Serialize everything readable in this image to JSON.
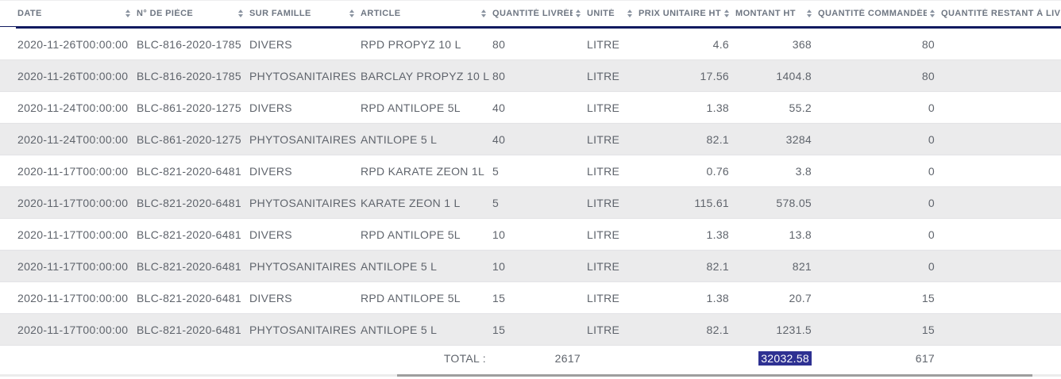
{
  "table": {
    "columns": [
      {
        "key": "date",
        "label": "DATE",
        "sortable": true,
        "align": "left"
      },
      {
        "key": "piece",
        "label": "N° DE PIÈCE",
        "sortable": true,
        "align": "left"
      },
      {
        "key": "famille",
        "label": "SUR FAMILLE",
        "sortable": true,
        "align": "left"
      },
      {
        "key": "article",
        "label": "ARTICLE",
        "sortable": true,
        "align": "left"
      },
      {
        "key": "quantite_livree",
        "label": "QUANTITÉ LIVRÉE",
        "sortable": true,
        "align": "left"
      },
      {
        "key": "unite",
        "label": "UNITÉ",
        "sortable": true,
        "align": "left"
      },
      {
        "key": "prix_unitaire_ht",
        "label": "PRIX UNITAIRE HT",
        "sortable": true,
        "align": "right"
      },
      {
        "key": "montant_ht",
        "label": "MONTANT HT",
        "sortable": true,
        "align": "right"
      },
      {
        "key": "quantite_commandee",
        "label": "QUANTITÉ COMMANDÉE",
        "sortable": true,
        "align": "right"
      },
      {
        "key": "quantite_restant",
        "label": "QUANTITÉ RESTANT À LIVRER",
        "sortable": false,
        "align": "left"
      }
    ],
    "rows": [
      {
        "date": "2020-11-26T00:00:00",
        "piece": "BLC-816-2020-1785",
        "famille": "DIVERS",
        "article": "RPD PROPYZ 10 L",
        "quantite_livree": "80",
        "unite": "LITRE",
        "prix_unitaire_ht": "4.6",
        "montant_ht": "368",
        "quantite_commandee": "80",
        "quantite_restant": ""
      },
      {
        "date": "2020-11-26T00:00:00",
        "piece": "BLC-816-2020-1785",
        "famille": "PHYTOSANITAIRES",
        "article": "BARCLAY PROPYZ 10 L",
        "quantite_livree": "80",
        "unite": "LITRE",
        "prix_unitaire_ht": "17.56",
        "montant_ht": "1404.8",
        "quantite_commandee": "80",
        "quantite_restant": ""
      },
      {
        "date": "2020-11-24T00:00:00",
        "piece": "BLC-861-2020-1275",
        "famille": "DIVERS",
        "article": "RPD ANTILOPE 5L",
        "quantite_livree": "40",
        "unite": "LITRE",
        "prix_unitaire_ht": "1.38",
        "montant_ht": "55.2",
        "quantite_commandee": "0",
        "quantite_restant": ""
      },
      {
        "date": "2020-11-24T00:00:00",
        "piece": "BLC-861-2020-1275",
        "famille": "PHYTOSANITAIRES",
        "article": "ANTILOPE 5 L",
        "quantite_livree": "40",
        "unite": "LITRE",
        "prix_unitaire_ht": "82.1",
        "montant_ht": "3284",
        "quantite_commandee": "0",
        "quantite_restant": ""
      },
      {
        "date": "2020-11-17T00:00:00",
        "piece": "BLC-821-2020-6481",
        "famille": "DIVERS",
        "article": "RPD KARATE ZEON 1L",
        "quantite_livree": "5",
        "unite": "LITRE",
        "prix_unitaire_ht": "0.76",
        "montant_ht": "3.8",
        "quantite_commandee": "0",
        "quantite_restant": ""
      },
      {
        "date": "2020-11-17T00:00:00",
        "piece": "BLC-821-2020-6481",
        "famille": "PHYTOSANITAIRES",
        "article": "KARATE ZEON 1 L",
        "quantite_livree": "5",
        "unite": "LITRE",
        "prix_unitaire_ht": "115.61",
        "montant_ht": "578.05",
        "quantite_commandee": "0",
        "quantite_restant": ""
      },
      {
        "date": "2020-11-17T00:00:00",
        "piece": "BLC-821-2020-6481",
        "famille": "DIVERS",
        "article": "RPD ANTILOPE 5L",
        "quantite_livree": "10",
        "unite": "LITRE",
        "prix_unitaire_ht": "1.38",
        "montant_ht": "13.8",
        "quantite_commandee": "0",
        "quantite_restant": ""
      },
      {
        "date": "2020-11-17T00:00:00",
        "piece": "BLC-821-2020-6481",
        "famille": "PHYTOSANITAIRES",
        "article": "ANTILOPE 5 L",
        "quantite_livree": "10",
        "unite": "LITRE",
        "prix_unitaire_ht": "82.1",
        "montant_ht": "821",
        "quantite_commandee": "0",
        "quantite_restant": ""
      },
      {
        "date": "2020-11-17T00:00:00",
        "piece": "BLC-821-2020-6481",
        "famille": "DIVERS",
        "article": "RPD ANTILOPE 5L",
        "quantite_livree": "15",
        "unite": "LITRE",
        "prix_unitaire_ht": "1.38",
        "montant_ht": "20.7",
        "quantite_commandee": "15",
        "quantite_restant": ""
      },
      {
        "date": "2020-11-17T00:00:00",
        "piece": "BLC-821-2020-6481",
        "famille": "PHYTOSANITAIRES",
        "article": "ANTILOPE 5 L",
        "quantite_livree": "15",
        "unite": "LITRE",
        "prix_unitaire_ht": "82.1",
        "montant_ht": "1231.5",
        "quantite_commandee": "15",
        "quantite_restant": ""
      }
    ],
    "footer": {
      "label": "TOTAL :",
      "quantite_livree": "2617",
      "montant_ht": "32032.58",
      "montant_ht_selected": true,
      "quantite_commandee": "617"
    }
  },
  "colors": {
    "header_rule": "#101a60",
    "selection_bg": "#2e3192",
    "selection_text": "#ffffff",
    "row_alt_bg": "#ebebec",
    "header_text": "#6e7682",
    "cell_text": "#5f646c"
  }
}
